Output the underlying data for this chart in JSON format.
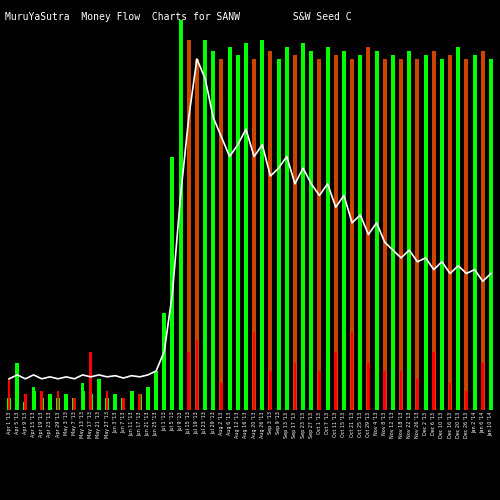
{
  "title": "MuruYaSutra  Money Flow  Charts for SANW         S&W Seed C                                                   omp",
  "background_color": "#000000",
  "positive_color": "#00ff00",
  "negative_color": "#ff0000",
  "orange_color": "#cc4400",
  "line_color": "#ffffff",
  "x_labels": [
    "Apr 1 '13",
    "Apr 5 '13",
    "Apr 9 '13",
    "Apr 15 '13",
    "Apr 19 '13",
    "Apr 23 '13",
    "Apr 29 '13",
    "May 3 '13",
    "May 7 '13",
    "May 13 '13",
    "May 17 '13",
    "May 21 '13",
    "May 27 '13",
    "Jun 3 '13",
    "Jun 7 '13",
    "Jun 11 '13",
    "Jun 17 '13",
    "Jun 21 '13",
    "Jun 25 '13",
    "Jul 1 '13",
    "Jul 5 '13",
    "Jul 9 '13",
    "Jul 15 '13",
    "Jul 19 '13",
    "Jul 23 '13",
    "Jul 29 '13",
    "Aug 2 '13",
    "Aug 6 '13",
    "Aug 12 '13",
    "Aug 16 '13",
    "Aug 20 '13",
    "Aug 26 '13",
    "Sep 3 '13",
    "Sep 9 '13",
    "Sep 13 '13",
    "Sep 17 '13",
    "Sep 23 '13",
    "Sep 27 '13",
    "Oct 1 '13",
    "Oct 7 '13",
    "Oct 11 '13",
    "Oct 15 '13",
    "Oct 21 '13",
    "Oct 25 '13",
    "Oct 29 '13",
    "Nov 4 '13",
    "Nov 8 '13",
    "Nov 12 '13",
    "Nov 18 '13",
    "Nov 22 '13",
    "Nov 26 '13",
    "Dec 2 '13",
    "Dec 6 '13",
    "Dec 10 '13",
    "Dec 16 '13",
    "Dec 20 '13",
    "Dec 26 '13",
    "Jan 2 '14",
    "Jan 6 '14",
    "Jan 10 '14"
  ],
  "tall_bar_heights": [
    0.3,
    1.2,
    0.2,
    0.5,
    0.3,
    0.4,
    0.3,
    0.4,
    0.3,
    0.5,
    0.4,
    0.8,
    0.3,
    0.4,
    0.3,
    0.5,
    0.4,
    0.6,
    1.0,
    2.5,
    6.5,
    10.0,
    9.5,
    9.0,
    9.5,
    9.2,
    9.0,
    9.3,
    9.1,
    9.4,
    9.0,
    9.5,
    9.2,
    9.0,
    9.3,
    9.1,
    9.4,
    9.2,
    9.0,
    9.3,
    9.1,
    9.2,
    9.0,
    9.1,
    9.3,
    9.2,
    9.0,
    9.1,
    9.0,
    9.2,
    9.0,
    9.1,
    9.2,
    9.0,
    9.1,
    9.3,
    9.0,
    9.1,
    9.2,
    9.0
  ],
  "tall_bar_colors": [
    "green",
    "green",
    "green",
    "green",
    "green",
    "green",
    "green",
    "green",
    "green",
    "green",
    "green",
    "green",
    "green",
    "green",
    "green",
    "green",
    "green",
    "green",
    "green",
    "green",
    "green",
    "green",
    "orange",
    "orange",
    "green",
    "green",
    "orange",
    "green",
    "green",
    "green",
    "orange",
    "green",
    "orange",
    "green",
    "green",
    "orange",
    "green",
    "green",
    "orange",
    "green",
    "orange",
    "green",
    "orange",
    "green",
    "orange",
    "green",
    "orange",
    "green",
    "orange",
    "green",
    "orange",
    "green",
    "orange",
    "green",
    "orange",
    "green",
    "orange",
    "green",
    "orange",
    "green"
  ],
  "small_bar_heights": [
    0.8,
    0.5,
    0.4,
    0.6,
    0.5,
    0.3,
    0.5,
    0.4,
    0.3,
    0.7,
    1.5,
    0.6,
    0.5,
    0.4,
    0.3,
    0.5,
    0.4,
    0.5,
    0.6,
    0.8,
    1.0,
    1.2,
    1.5,
    1.8,
    0.8,
    1.0,
    0.7,
    1.2,
    1.5,
    1.8,
    2.0,
    1.5,
    1.0,
    1.2,
    1.5,
    1.2,
    2.0,
    1.5,
    1.0,
    1.3,
    1.5,
    1.8,
    2.0,
    1.0,
    1.2,
    1.5,
    1.0,
    0.8,
    1.0,
    1.2,
    0.8,
    0.6,
    1.5,
    0.8,
    0.7,
    1.0,
    0.5,
    0.8,
    1.2,
    0.6
  ],
  "small_bar_colors": [
    "red",
    "green",
    "red",
    "green",
    "red",
    "green",
    "red",
    "green",
    "red",
    "green",
    "red",
    "green",
    "red",
    "green",
    "red",
    "green",
    "red",
    "green",
    "green",
    "green",
    "green",
    "green",
    "red",
    "red",
    "green",
    "green",
    "red",
    "green",
    "green",
    "green",
    "red",
    "green",
    "red",
    "green",
    "green",
    "red",
    "green",
    "green",
    "red",
    "green",
    "red",
    "green",
    "red",
    "green",
    "red",
    "green",
    "red",
    "green",
    "red",
    "green",
    "red",
    "green",
    "red",
    "green",
    "red",
    "green",
    "red",
    "green",
    "red",
    "green"
  ],
  "line_values": [
    0.8,
    0.9,
    0.8,
    0.9,
    0.8,
    0.85,
    0.8,
    0.85,
    0.8,
    0.9,
    0.85,
    0.9,
    0.85,
    0.88,
    0.82,
    0.88,
    0.85,
    0.9,
    1.0,
    1.5,
    3.0,
    5.5,
    7.5,
    9.0,
    8.5,
    7.5,
    7.0,
    6.5,
    6.8,
    7.2,
    6.5,
    6.8,
    6.0,
    6.2,
    6.5,
    5.8,
    6.2,
    5.8,
    5.5,
    5.8,
    5.2,
    5.5,
    4.8,
    5.0,
    4.5,
    4.8,
    4.3,
    4.1,
    3.9,
    4.1,
    3.8,
    3.9,
    3.6,
    3.8,
    3.5,
    3.7,
    3.5,
    3.6,
    3.3,
    3.5
  ],
  "ylim": [
    0,
    10
  ],
  "title_fontsize": 7,
  "tick_fontsize": 3.5
}
